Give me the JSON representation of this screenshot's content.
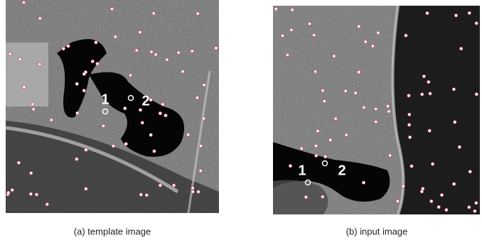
{
  "panels": [
    {
      "caption": "(a) template image",
      "markers": [
        "1",
        "2"
      ]
    },
    {
      "caption": "(b) input image",
      "markers": [
        "1",
        "2"
      ]
    }
  ]
}
